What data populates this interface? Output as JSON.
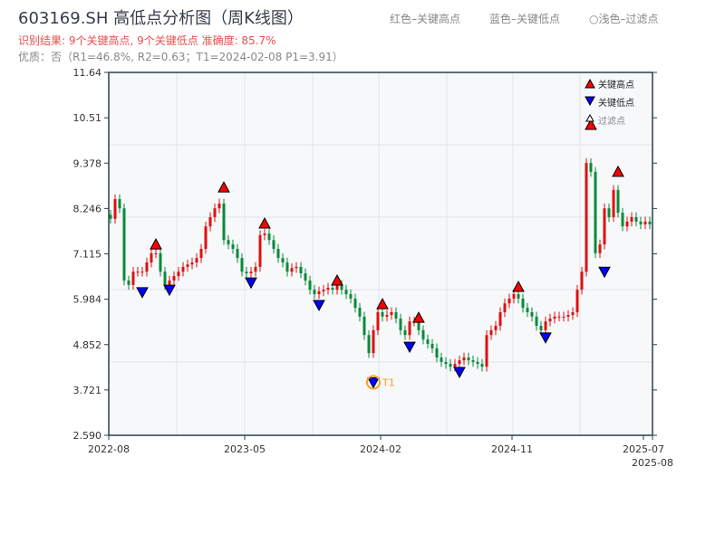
{
  "header": {
    "title": "603169.SH 高低点分析图（周K线图）",
    "result": "识别结果: 9个关键高点, 9个关键低点  准确度: 85.7%",
    "quality": "优质：否（R1=46.8%, R2=0.63；T1=2024-02-08 P1=3.91）",
    "legend_red": "红色–关键高点",
    "legend_blue": "蓝色–关键低点",
    "legend_light": "○浅色–过滤点"
  },
  "colors": {
    "up": "#e01010",
    "down": "#0a8a3a",
    "high_marker": "#ff0000",
    "low_marker": "#0000ff",
    "t1": "#f5a020",
    "plot_bg": "#f6f8fa"
  },
  "chart_data": {
    "type": "candlestick",
    "y_ticks": [
      "11.64",
      "10.51",
      "9.378",
      "8.246",
      "7.115",
      "5.984",
      "4.852",
      "3.721",
      "2.590"
    ],
    "ylim": [
      2.59,
      11.64
    ],
    "x_ticks": [
      {
        "i": 0,
        "label": "2022-08"
      },
      {
        "i": 30,
        "label": "2023-05"
      },
      {
        "i": 60,
        "label": "2024-02"
      },
      {
        "i": 89,
        "label": "2024-11"
      },
      {
        "i": 118,
        "label": "2025-07"
      },
      {
        "i": 120,
        "label": "2025-08"
      }
    ],
    "close": [
      7.99,
      8.48,
      8.25,
      6.45,
      6.34,
      6.67,
      6.67,
      6.67,
      6.9,
      7.13,
      7.13,
      6.67,
      6.34,
      6.45,
      6.56,
      6.67,
      6.79,
      6.85,
      6.9,
      7.01,
      7.24,
      7.8,
      8.03,
      8.25,
      8.37,
      7.46,
      7.35,
      7.24,
      7.01,
      6.67,
      6.63,
      6.67,
      6.79,
      7.58,
      7.62,
      7.46,
      7.24,
      7.01,
      6.9,
      6.67,
      6.76,
      6.79,
      6.63,
      6.45,
      6.22,
      6.11,
      6.18,
      6.22,
      6.27,
      6.22,
      6.34,
      6.22,
      6.11,
      6.0,
      5.77,
      5.55,
      5.09,
      4.64,
      5.21,
      5.66,
      5.55,
      5.59,
      5.66,
      5.5,
      5.21,
      5.09,
      5.43,
      5.43,
      5.21,
      4.98,
      4.87,
      4.76,
      4.53,
      4.42,
      4.37,
      4.3,
      4.37,
      4.46,
      4.53,
      4.46,
      4.42,
      4.37,
      4.3,
      5.09,
      5.21,
      5.32,
      5.66,
      5.88,
      6.0,
      6.11,
      6.0,
      5.77,
      5.66,
      5.55,
      5.32,
      5.21,
      5.43,
      5.5,
      5.55,
      5.55,
      5.55,
      5.59,
      5.66,
      6.22,
      6.67,
      9.38,
      9.16,
      7.13,
      7.35,
      8.25,
      8.03,
      8.71,
      8.14,
      7.8,
      7.92,
      8.03,
      7.92,
      7.85,
      7.92,
      7.85
    ],
    "key_highs": [
      {
        "i": 10,
        "price": 7.35
      },
      {
        "i": 25,
        "price": 8.77
      },
      {
        "i": 34,
        "price": 7.87
      },
      {
        "i": 50,
        "price": 6.45
      },
      {
        "i": 60,
        "price": 5.86
      },
      {
        "i": 68,
        "price": 5.52
      },
      {
        "i": 90,
        "price": 6.29
      },
      {
        "i": 106,
        "price": 10.33
      },
      {
        "i": 112,
        "price": 9.16
      }
    ],
    "key_lows": [
      {
        "i": 7,
        "price": 6.16
      },
      {
        "i": 13,
        "price": 6.22
      },
      {
        "i": 31,
        "price": 6.4
      },
      {
        "i": 46,
        "price": 5.84
      },
      {
        "i": 58,
        "price": 3.91
      },
      {
        "i": 66,
        "price": 4.8
      },
      {
        "i": 77,
        "price": 4.17
      },
      {
        "i": 96,
        "price": 5.03
      },
      {
        "i": 109,
        "price": 6.67
      }
    ],
    "t1": {
      "i": 58,
      "price": 3.91,
      "label": "T1"
    },
    "legend": [
      "关键高点",
      "关键低点",
      "过滤点"
    ],
    "legend_position": "top-right",
    "grid": true
  }
}
